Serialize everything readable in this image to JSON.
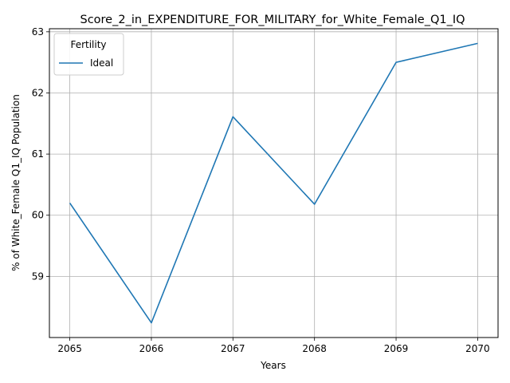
{
  "chart_data": {
    "type": "line",
    "title": "Score_2_in_EXPENDITURE_FOR_MILITARY_for_White_Female_Q1_IQ",
    "xlabel": "Years",
    "ylabel": "% of White_Female Q1_IQ Population",
    "x": [
      2065,
      2066,
      2067,
      2068,
      2069,
      2070
    ],
    "xticks": [
      "2065",
      "2066",
      "2067",
      "2068",
      "2069",
      "2070"
    ],
    "yticks": [
      59,
      60,
      61,
      62,
      63
    ],
    "xlim": [
      2064.75,
      2070.25
    ],
    "ylim": [
      58.0,
      63.05
    ],
    "grid": true,
    "legend": {
      "title": "Fertility",
      "placement": "top-left"
    },
    "series": [
      {
        "name": "Ideal",
        "color": "#1f77b4",
        "values": [
          60.2,
          58.24,
          61.61,
          60.18,
          62.5,
          62.81
        ]
      }
    ]
  }
}
